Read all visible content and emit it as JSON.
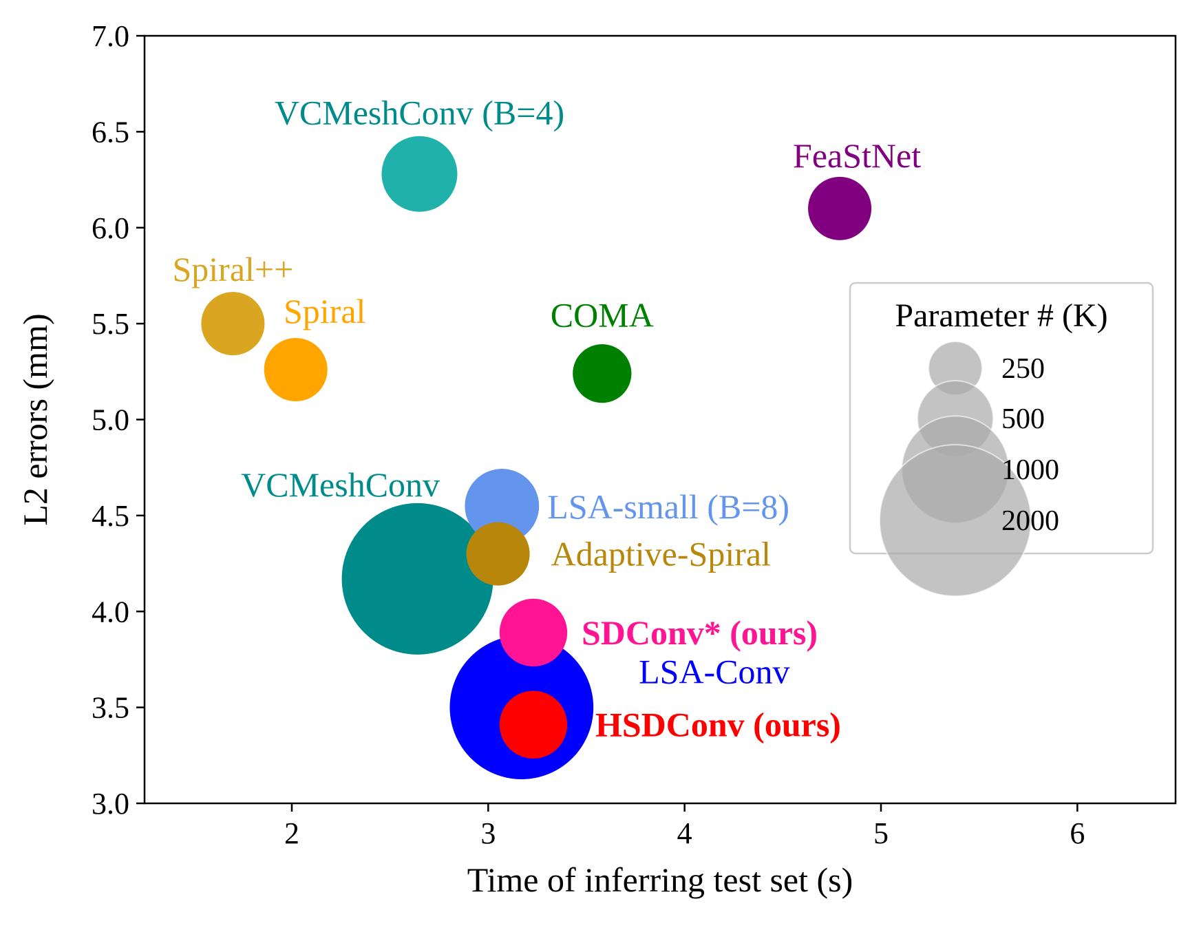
{
  "chart_data": {
    "type": "scatter",
    "xlabel": "Time of inferring test set (s)",
    "ylabel": "L2 errors (mm)",
    "xlim": [
      1.25,
      6.5
    ],
    "ylim": [
      3.0,
      7.0
    ],
    "xticks": [
      "2",
      "3",
      "4",
      "5",
      "6"
    ],
    "yticks": [
      "3.0",
      "3.5",
      "4.0",
      "4.5",
      "5.0",
      "5.5",
      "6.0",
      "6.5",
      "7.0"
    ],
    "grid": false,
    "legend": {
      "title": "Parameter # (K)",
      "placement": "right",
      "sizes": [
        {
          "label": "250",
          "value": 250
        },
        {
          "label": "500",
          "value": 500
        },
        {
          "label": "1000",
          "value": 1000
        },
        {
          "label": "2000",
          "value": 2000
        }
      ],
      "color": "#aaaaaa"
    },
    "points": [
      {
        "name": "VCMeshConv (B=4)",
        "x": 2.65,
        "y": 6.28,
        "params": 500,
        "color": "#20b2aa",
        "text_color": "#008b8b",
        "bold": false
      },
      {
        "name": "FeaStNet",
        "x": 4.79,
        "y": 6.1,
        "params": 350,
        "color": "#800080",
        "text_color": "#800080",
        "bold": false
      },
      {
        "name": "Spiral++",
        "x": 1.7,
        "y": 5.5,
        "params": 350,
        "color": "#daa520",
        "text_color": "#daa520",
        "bold": false
      },
      {
        "name": "Spiral",
        "x": 2.02,
        "y": 5.26,
        "params": 350,
        "color": "#ffa500",
        "text_color": "#ffa500",
        "bold": false
      },
      {
        "name": "COMA",
        "x": 3.58,
        "y": 5.24,
        "params": 300,
        "color": "#008000",
        "text_color": "#008000",
        "bold": false
      },
      {
        "name": "VCMeshConv",
        "x": 2.64,
        "y": 4.17,
        "params": 2000,
        "color": "#008b8b",
        "text_color": "#008b8b",
        "bold": false
      },
      {
        "name": "LSA-small (B=8)",
        "x": 3.07,
        "y": 4.55,
        "params": 480,
        "color": "#6495ed",
        "text_color": "#6495ed",
        "bold": false
      },
      {
        "name": "Adaptive-Spiral",
        "x": 3.05,
        "y": 4.3,
        "params": 350,
        "color": "#b8860b",
        "text_color": "#b8860b",
        "bold": false
      },
      {
        "name": "SDConv* (ours)",
        "x": 3.23,
        "y": 3.89,
        "params": 400,
        "color": "#ff1493",
        "text_color": "#ff1493",
        "bold": true
      },
      {
        "name": "LSA-Conv",
        "x": 3.17,
        "y": 3.5,
        "params": 1800,
        "color": "#0000ff",
        "text_color": "#0000ff",
        "bold": false
      },
      {
        "name": "HSDConv (ours)",
        "x": 3.23,
        "y": 3.41,
        "params": 400,
        "color": "#ff0000",
        "text_color": "#ff0000",
        "bold": true
      }
    ]
  }
}
